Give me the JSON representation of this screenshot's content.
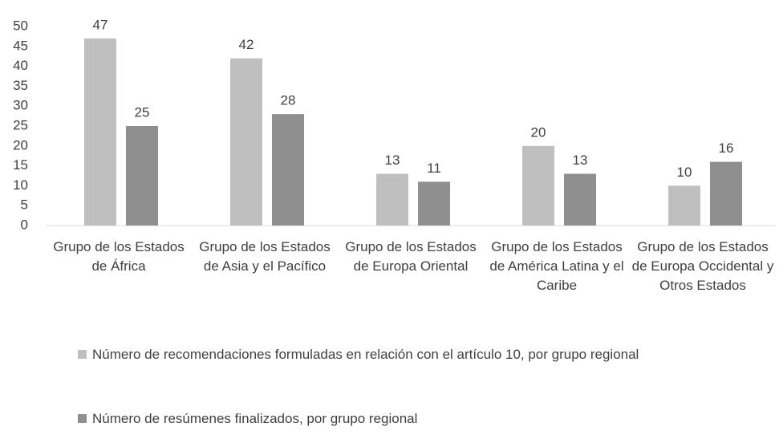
{
  "chart_data": {
    "type": "bar",
    "categories": [
      "Grupo de los Estados de África",
      "Grupo de los Estados de Asia y el Pacífico",
      "Grupo de los Estados de Europa Oriental",
      "Grupo de los Estados de América Latina y el Caribe",
      "Grupo de los Estados de Europa Occidental y Otros Estados"
    ],
    "series": [
      {
        "name": "Número de recomendaciones formuladas en relación con el artículo 10, por grupo regional",
        "color": "#bfbfbf",
        "values": [
          47,
          42,
          13,
          20,
          10
        ]
      },
      {
        "name": "Número de resúmenes finalizados, por grupo regional",
        "color": "#8f8f8f",
        "values": [
          25,
          28,
          11,
          13,
          16
        ]
      }
    ],
    "ylim": [
      0,
      50
    ],
    "yticks": [
      0,
      5,
      10,
      15,
      20,
      25,
      30,
      35,
      40,
      45,
      50
    ],
    "grid": false,
    "legend": "bottom"
  }
}
